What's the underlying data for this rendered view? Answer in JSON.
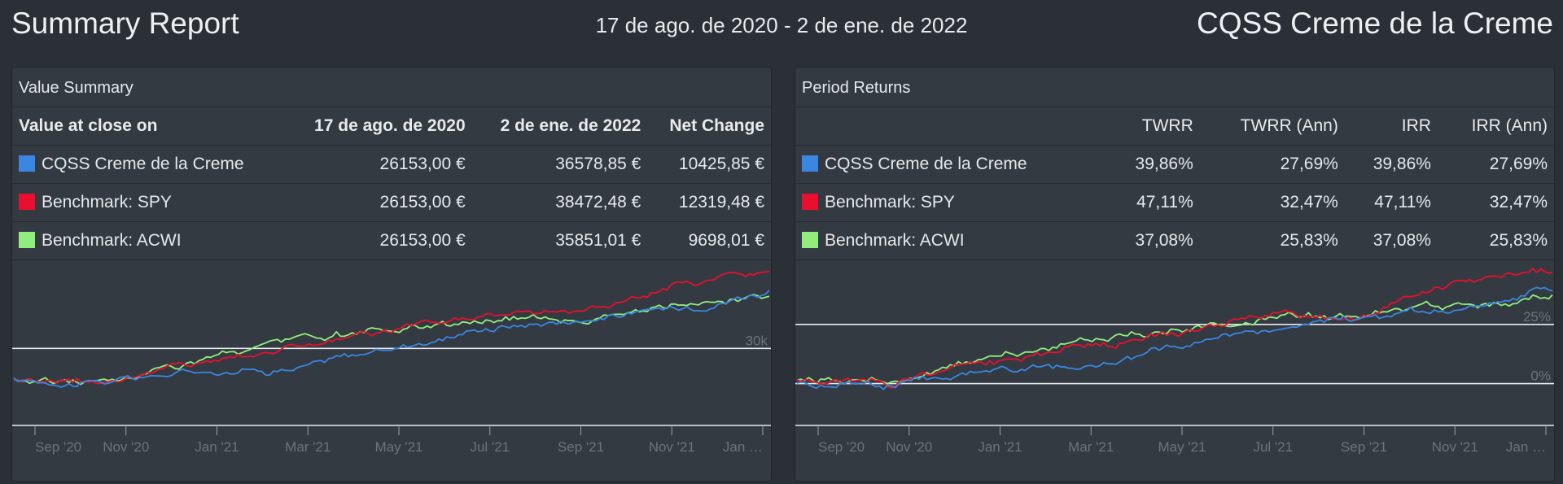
{
  "header": {
    "title": "Summary Report",
    "date_range": "17 de ago. de 2020 - 2 de ene. de 2022",
    "portfolio_name": "CQSS Creme de la Creme"
  },
  "colors": {
    "portfolio": "#3a86e0",
    "spy": "#e8102e",
    "acwi": "#90ee7e"
  },
  "value_summary": {
    "title": "Value Summary",
    "headers": [
      "Value at close on",
      "17 de ago. de 2020",
      "2 de ene. de 2022",
      "Net Change"
    ],
    "rows": [
      {
        "name": "CQSS Creme de la Creme",
        "start": "26153,00 €",
        "end": "36578,85 €",
        "change": "10425,85 €"
      },
      {
        "name": "Benchmark: SPY",
        "start": "26153,00 €",
        "end": "38472,48 €",
        "change": "12319,48 €"
      },
      {
        "name": "Benchmark: ACWI",
        "start": "26153,00 €",
        "end": "35851,01 €",
        "change": "9698,01 €"
      }
    ]
  },
  "period_returns": {
    "title": "Period Returns",
    "headers": [
      "",
      "TWRR",
      "TWRR (Ann)",
      "IRR",
      "IRR (Ann)"
    ],
    "rows": [
      {
        "name": "CQSS Creme de la Creme",
        "twrr": "39,86%",
        "twrr_ann": "27,69%",
        "irr": "39,86%",
        "irr_ann": "27,69%"
      },
      {
        "name": "Benchmark: SPY",
        "twrr": "47,11%",
        "twrr_ann": "32,47%",
        "irr": "47,11%",
        "irr_ann": "32,47%"
      },
      {
        "name": "Benchmark: ACWI",
        "twrr": "37,08%",
        "twrr_ann": "25,83%",
        "irr": "37,08%",
        "irr_ann": "25,83%"
      }
    ]
  },
  "chart_data": [
    {
      "type": "line",
      "x": [
        "Sep '20",
        "Nov '20",
        "Jan '21",
        "Mar '21",
        "May '21",
        "Jul '21",
        "Sep '21",
        "Nov '21",
        "Jan …"
      ],
      "y_tick_labels": [
        "30k"
      ],
      "grid": true,
      "series": [
        {
          "name": "CQSS Creme de la Creme",
          "values": [
            26400,
            26300,
            27600,
            27900,
            30000,
            32400,
            33300,
            34400,
            36600
          ]
        },
        {
          "name": "Benchmark: SPY",
          "values": [
            26600,
            26500,
            28600,
            30400,
            31800,
            33700,
            34200,
            37000,
            38500
          ]
        },
        {
          "name": "Benchmark: ACWI",
          "values": [
            26500,
            26300,
            28800,
            30700,
            31900,
            33300,
            33500,
            34600,
            35900
          ]
        }
      ]
    },
    {
      "type": "line",
      "x": [
        "Sep '20",
        "Nov '20",
        "Jan '21",
        "Mar '21",
        "May '21",
        "Jul '21",
        "Sep '21",
        "Nov '21",
        "Jan …"
      ],
      "y_tick_labels": [
        "25%",
        "0%"
      ],
      "grid": true,
      "series": [
        {
          "name": "CQSS Creme de la Creme",
          "values": [
            0.5,
            0,
            5.5,
            6.5,
            14.5,
            23.5,
            27.5,
            31.5,
            39.9
          ]
        },
        {
          "name": "Benchmark: SPY",
          "values": [
            1.5,
            1,
            9.5,
            16.5,
            21.5,
            29,
            30.5,
            41.5,
            47.1
          ]
        },
        {
          "name": "Benchmark: ACWI",
          "values": [
            1,
            0,
            10,
            17.5,
            22,
            27.5,
            28.5,
            32.5,
            37.1
          ]
        }
      ]
    }
  ]
}
